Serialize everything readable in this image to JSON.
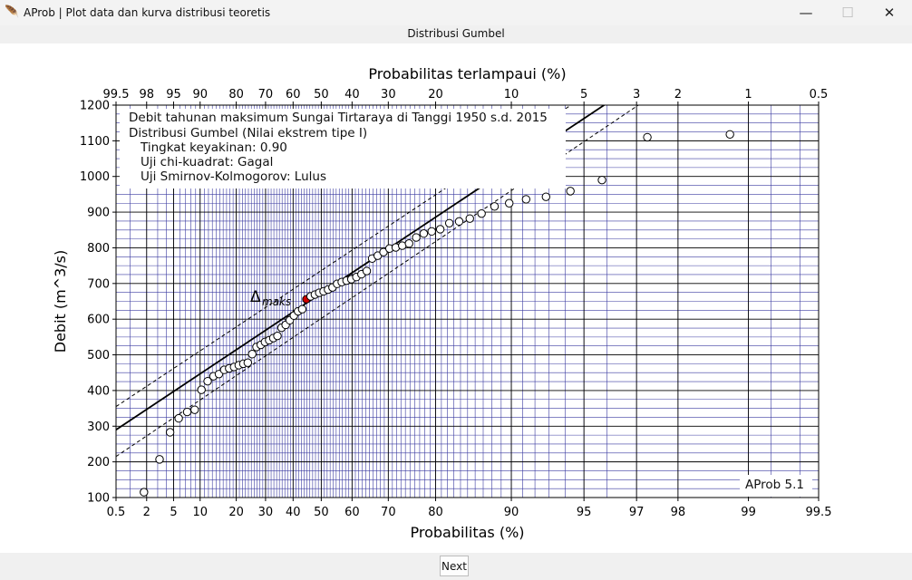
{
  "window": {
    "title": "AProb | Plot data dan kurva distribusi teoretis",
    "app_icon": "feather-icon"
  },
  "header": {
    "title": "Distribusi Gumbel"
  },
  "footer": {
    "next_label": "Next"
  },
  "chart_data": {
    "type": "scatter",
    "scale": "gumbel-probability",
    "xlabel": "Probabilitas (%)",
    "x2label": "Probabilitas terlampaui (%)",
    "ylabel": "Debit (m^3/s)",
    "xlim": [
      0.5,
      99.5
    ],
    "ylim": [
      100,
      1200
    ],
    "grid": true,
    "xticks": [
      0.5,
      2,
      5,
      10,
      20,
      30,
      40,
      50,
      60,
      70,
      80,
      90,
      95,
      97,
      98,
      99,
      99.5
    ],
    "xtick_labels": [
      "0.5",
      "2",
      "5",
      "10",
      "20",
      "30",
      "40",
      "50",
      "60",
      "70",
      "80",
      "90",
      "95",
      "97",
      "98",
      "99",
      "99.5"
    ],
    "x2ticks": [
      99.5,
      98,
      95,
      90,
      80,
      70,
      60,
      50,
      40,
      30,
      20,
      10,
      5,
      3,
      2,
      1,
      0.5
    ],
    "x2tick_labels": [
      "99.5",
      "98",
      "95",
      "90",
      "80",
      "70",
      "60",
      "50",
      "40",
      "30",
      "20",
      "10",
      "5",
      "3",
      "2",
      "1",
      "0.5"
    ],
    "yticks": [
      100,
      200,
      300,
      400,
      500,
      600,
      700,
      800,
      900,
      1000,
      1100,
      1200
    ],
    "ytick_labels": [
      "100",
      "200",
      "300",
      "400",
      "500",
      "600",
      "700",
      "800",
      "900",
      "1000",
      "1100",
      "1200"
    ],
    "info_lines": [
      "Debit tahunan maksimum Sungai Tirtaraya di Tanggi 1950 s.d. 2015",
      "Distribusi Gumbel (Nilai ekstrem tipe I)",
      "Tingkat keyakinan: 0.90",
      "Uji chi-kuadrat: Gagal",
      "Uji Smirnov-Kolmogorov: Lulus"
    ],
    "version": "AProb 5.1",
    "delta_label": "Δ",
    "delta_sub": "maks",
    "fit_line": {
      "y_at_0_5": 290,
      "y_at_99_5": 1600
    },
    "confidence_upper": {
      "y_at_0_5": 355,
      "y_at_99_5": 1660
    },
    "confidence_lower": {
      "y_at_0_5": 215,
      "y_at_99_5": 1540
    },
    "highlight_point": {
      "x": 44.8,
      "y": 656
    },
    "points": [
      [
        1.8,
        115
      ],
      [
        3.2,
        207
      ],
      [
        4.5,
        283
      ],
      [
        5.8,
        322
      ],
      [
        7.3,
        340
      ],
      [
        8.8,
        346
      ],
      [
        10.3,
        402
      ],
      [
        11.8,
        426
      ],
      [
        13.3,
        440
      ],
      [
        14.8,
        446
      ],
      [
        16.3,
        458
      ],
      [
        17.8,
        462
      ],
      [
        19.3,
        466
      ],
      [
        20.8,
        471
      ],
      [
        22.3,
        475
      ],
      [
        23.8,
        478
      ],
      [
        25.3,
        502
      ],
      [
        26.8,
        522
      ],
      [
        28.3,
        528
      ],
      [
        29.8,
        536
      ],
      [
        31.3,
        541
      ],
      [
        32.8,
        547
      ],
      [
        34.3,
        553
      ],
      [
        35.8,
        576
      ],
      [
        37.3,
        584
      ],
      [
        38.8,
        597
      ],
      [
        40.3,
        610
      ],
      [
        41.8,
        622
      ],
      [
        43.3,
        628
      ],
      [
        44.8,
        656
      ],
      [
        46.3,
        664
      ],
      [
        47.8,
        669
      ],
      [
        49.3,
        674
      ],
      [
        50.8,
        678
      ],
      [
        52.3,
        683
      ],
      [
        53.8,
        689
      ],
      [
        55.3,
        699
      ],
      [
        56.8,
        704
      ],
      [
        58.3,
        708
      ],
      [
        59.8,
        712
      ],
      [
        61.3,
        718
      ],
      [
        62.8,
        726
      ],
      [
        64.3,
        735
      ],
      [
        65.8,
        770
      ],
      [
        67.3,
        778
      ],
      [
        68.8,
        788
      ],
      [
        70.3,
        798
      ],
      [
        71.8,
        801
      ],
      [
        73.3,
        806
      ],
      [
        74.8,
        812
      ],
      [
        76.3,
        829
      ],
      [
        77.8,
        840
      ],
      [
        79.3,
        846
      ],
      [
        80.8,
        852
      ],
      [
        82.3,
        869
      ],
      [
        83.8,
        874
      ],
      [
        85.3,
        882
      ],
      [
        86.8,
        896
      ],
      [
        88.3,
        916
      ],
      [
        89.8,
        925
      ],
      [
        91.3,
        936
      ],
      [
        92.8,
        943
      ],
      [
        94.3,
        959
      ],
      [
        95.8,
        990
      ],
      [
        97.3,
        1110
      ],
      [
        98.8,
        1118
      ]
    ],
    "colors": {
      "grid_minor": "#3a3aa0",
      "grid_major": "#000000",
      "highlight": "#d00000",
      "line": "#000000"
    }
  }
}
